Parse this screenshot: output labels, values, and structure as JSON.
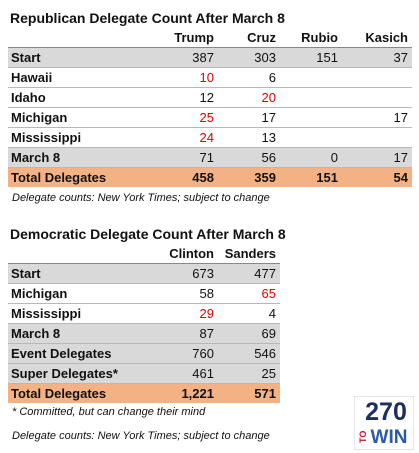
{
  "republican": {
    "title": "Republican Delegate Count After March 8",
    "header": [
      "Trump",
      "Cruz",
      "Rubio",
      "Kasich"
    ],
    "rows": [
      [
        "Start",
        "387",
        "303",
        "151",
        "37"
      ],
      [
        "Hawaii",
        "10",
        "6",
        null,
        null
      ],
      [
        "Idaho",
        "12",
        "20",
        null,
        null
      ],
      [
        "Michigan",
        "25",
        "17",
        null,
        "17"
      ],
      [
        "Mississippi",
        "24",
        "13",
        null,
        null
      ],
      [
        "March 8",
        "71",
        "56",
        "0",
        "17"
      ],
      [
        "Total Delegates",
        "458",
        "359",
        "151",
        "54"
      ]
    ],
    "note": "Delegate counts: New York Times; subject to change"
  },
  "democratic": {
    "title": "Democratic Delegate Count After March 8",
    "header": [
      "Clinton",
      "Sanders"
    ],
    "rows": [
      [
        "Start",
        "673",
        "477"
      ],
      [
        "Michigan",
        "58",
        "65"
      ],
      [
        "Mississippi",
        "29",
        "4"
      ],
      [
        "March 8",
        "87",
        "69"
      ],
      [
        "Event Delegates",
        "760",
        "546"
      ],
      [
        "Super Delegates*",
        "461",
        "25"
      ],
      [
        "Total Delegates",
        "1,221",
        "571"
      ]
    ],
    "notes": [
      "* Committed, but can change their mind",
      "Delegate counts: New York Times; subject to change"
    ]
  },
  "logo": {
    "number": "270",
    "to": "TO",
    "win": "WIN"
  }
}
